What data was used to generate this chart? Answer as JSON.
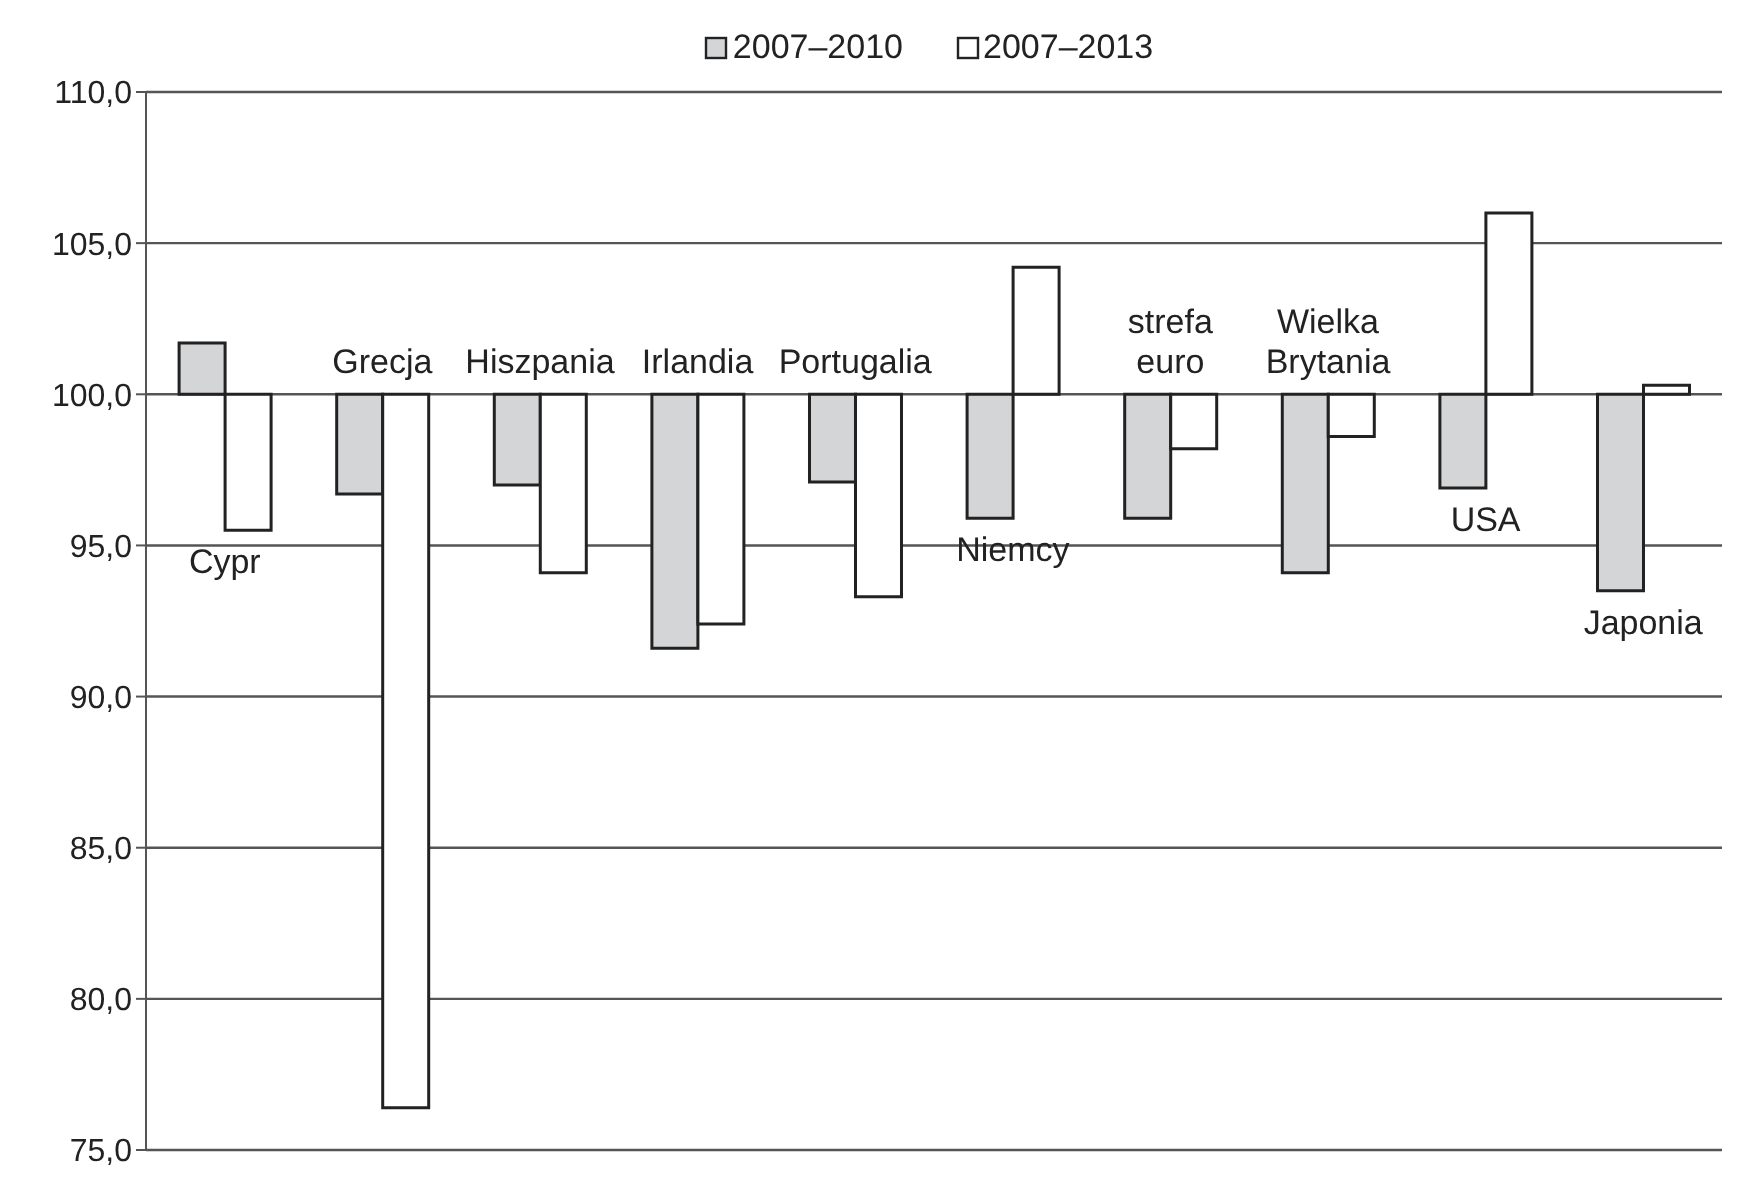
{
  "chart_data": {
    "type": "bar",
    "categories": [
      "Cypr",
      "Grecja",
      "Hiszpania",
      "Irlandia",
      "Portugalia",
      "Niemcy",
      "strefa euro",
      "Wielka Brytania",
      "USA",
      "Japonia"
    ],
    "series": [
      {
        "name": "2007–2010",
        "color": "#d4d5d7",
        "base": [
          100,
          100,
          100,
          100,
          100,
          100,
          100,
          100,
          100,
          100
        ],
        "values": [
          1.7,
          -3.3,
          -3.0,
          -8.4,
          -2.9,
          -4.1,
          -4.1,
          -5.9,
          -3.1,
          -6.5
        ]
      },
      {
        "name": "2007–2013",
        "color": "#ffffff",
        "base": [
          100,
          100,
          100,
          100,
          100,
          100,
          100,
          100,
          100,
          100
        ],
        "values": [
          -4.5,
          -23.6,
          -5.9,
          -7.6,
          -6.7,
          4.2,
          -1.8,
          -1.4,
          6.0,
          0.3
        ]
      }
    ],
    "ylim": [
      75,
      110
    ],
    "yticks": [
      {
        "value": 75,
        "label": "75,0"
      },
      {
        "value": 80,
        "label": "80,0"
      },
      {
        "value": 85,
        "label": "85,0"
      },
      {
        "value": 90,
        "label": "90,0"
      },
      {
        "value": 95,
        "label": "95,0"
      },
      {
        "value": 100,
        "label": "100,0"
      },
      {
        "value": 105,
        "label": "105,0"
      },
      {
        "value": 110,
        "label": "110,0"
      }
    ],
    "grid": "y",
    "legend": "top"
  }
}
